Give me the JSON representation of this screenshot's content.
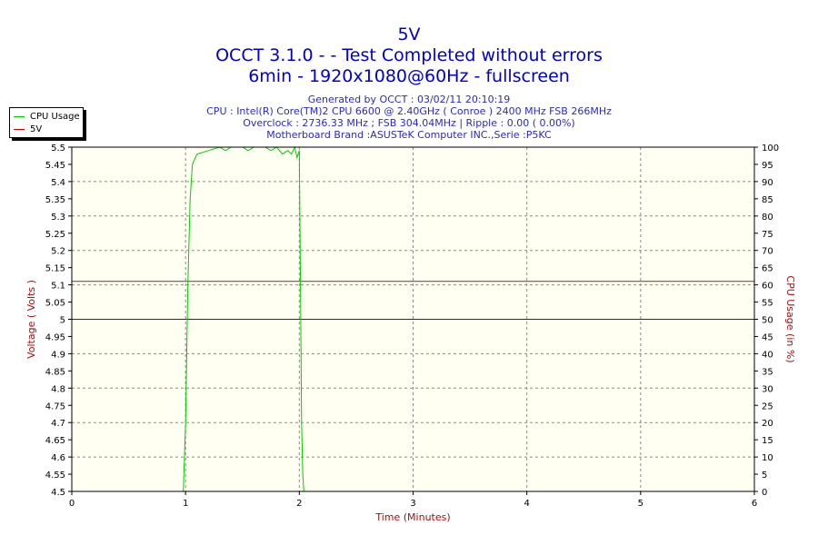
{
  "header": {
    "title": "5V",
    "subtitle1": "OCCT 3.1.0 -  - Test Completed without errors",
    "subtitle2": "6min - 1920x1080@60Hz - fullscreen",
    "info1": "Generated by OCCT : 03/02/11 20:10:19",
    "info2": "CPU : Intel(R) Core(TM)2 CPU 6600 @ 2.40GHz ( Conroe ) 2400 MHz FSB 266MHz",
    "info3": "Overclock : 2736.33 MHz ; FSB 304.04MHz | Ripple : 0.00 ( 0.00%)",
    "info4": "Motherboard Brand :ASUSTeK Computer INC.,Serie :P5KC"
  },
  "legend": {
    "items": [
      {
        "label": "CPU Usage",
        "color": "#00cc00"
      },
      {
        "label": "5V",
        "color": "#c00000"
      }
    ]
  },
  "colors": {
    "plot_background": "#fffff2",
    "grid": "#8a8a8a",
    "axis_label": "#a01010",
    "cpu_line": "#00cc00",
    "voltage_line": "#1a1acc",
    "limit_line": "#7a3030"
  },
  "chart_data": {
    "type": "line",
    "xlabel": "Time (Minutes)",
    "ylabel_left": "Voltage ( Volts )",
    "ylabel_right": "CPU Usage (in %)",
    "xlim": [
      0,
      6
    ],
    "ylim_left": [
      4.5,
      5.5
    ],
    "ylim_right": [
      0,
      100
    ],
    "x_ticks": [
      "0",
      "1",
      "2",
      "3",
      "4",
      "5",
      "6"
    ],
    "y_left_ticks": [
      "4.5",
      "4.55",
      "4.6",
      "4.65",
      "4.7",
      "4.75",
      "4.8",
      "4.85",
      "4.9",
      "4.95",
      "5",
      "5.05",
      "5.1",
      "5.15",
      "5.2",
      "5.25",
      "5.3",
      "5.35",
      "5.4",
      "5.45",
      "5.5"
    ],
    "y_right_ticks": [
      "0",
      "5",
      "10",
      "15",
      "20",
      "25",
      "30",
      "35",
      "40",
      "45",
      "50",
      "55",
      "60",
      "65",
      "70",
      "75",
      "80",
      "85",
      "90",
      "95",
      "100"
    ],
    "grid": true,
    "legend_position": "top-left",
    "series": [
      {
        "name": "5V",
        "axis": "left",
        "x": [
          0,
          6
        ],
        "values": [
          5.0,
          5.0
        ]
      },
      {
        "name": "CPU Usage",
        "axis": "right",
        "x": [
          0.98,
          1.0,
          1.02,
          1.04,
          1.06,
          1.1,
          1.2,
          1.3,
          1.35,
          1.4,
          1.5,
          1.55,
          1.6,
          1.7,
          1.75,
          1.8,
          1.85,
          1.9,
          1.93,
          1.96,
          1.98,
          2.0,
          2.01,
          2.02,
          2.03,
          2.04
        ],
        "values": [
          0,
          20,
          60,
          85,
          95,
          98,
          99,
          100,
          99,
          100,
          100,
          99,
          100,
          100,
          99,
          100,
          98,
          99,
          98,
          100,
          97,
          99,
          60,
          20,
          5,
          0
        ]
      }
    ],
    "reference_lines": [
      {
        "axis": "left",
        "value": 5.11
      }
    ]
  }
}
